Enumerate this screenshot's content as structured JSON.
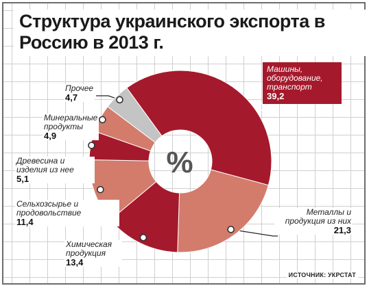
{
  "title": "Структура украинского экспорта в Россию в 2013 г.",
  "source": "ИСТОЧНИК: УКРСТАТ",
  "chart_data": {
    "type": "pie",
    "title": "Структура украинского экспорта в Россию в 2013 г.",
    "center_label": "%",
    "slices": [
      {
        "label": "Машины, оборудование, транспорт",
        "value": 39.2,
        "value_text": "39,2",
        "color": "#a5192c"
      },
      {
        "label": "Металлы и продукция из них",
        "value": 21.3,
        "value_text": "21,3",
        "color": "#d37c6c"
      },
      {
        "label": "Химическая продукция",
        "value": 13.4,
        "value_text": "13,4",
        "color": "#a5192c"
      },
      {
        "label": "Сельхозсырье и продовольствие",
        "value": 11.4,
        "value_text": "11,4",
        "color": "#d37c6c"
      },
      {
        "label": "Древесина и изделия из нее",
        "value": 5.1,
        "value_text": "5,1",
        "color": "#a5192c"
      },
      {
        "label": "Минеральные продукты",
        "value": 4.9,
        "value_text": "4,9",
        "color": "#d37c6c"
      },
      {
        "label": "Прочее",
        "value": 4.7,
        "value_text": "4,7",
        "color": "#c4c4c4"
      }
    ]
  }
}
